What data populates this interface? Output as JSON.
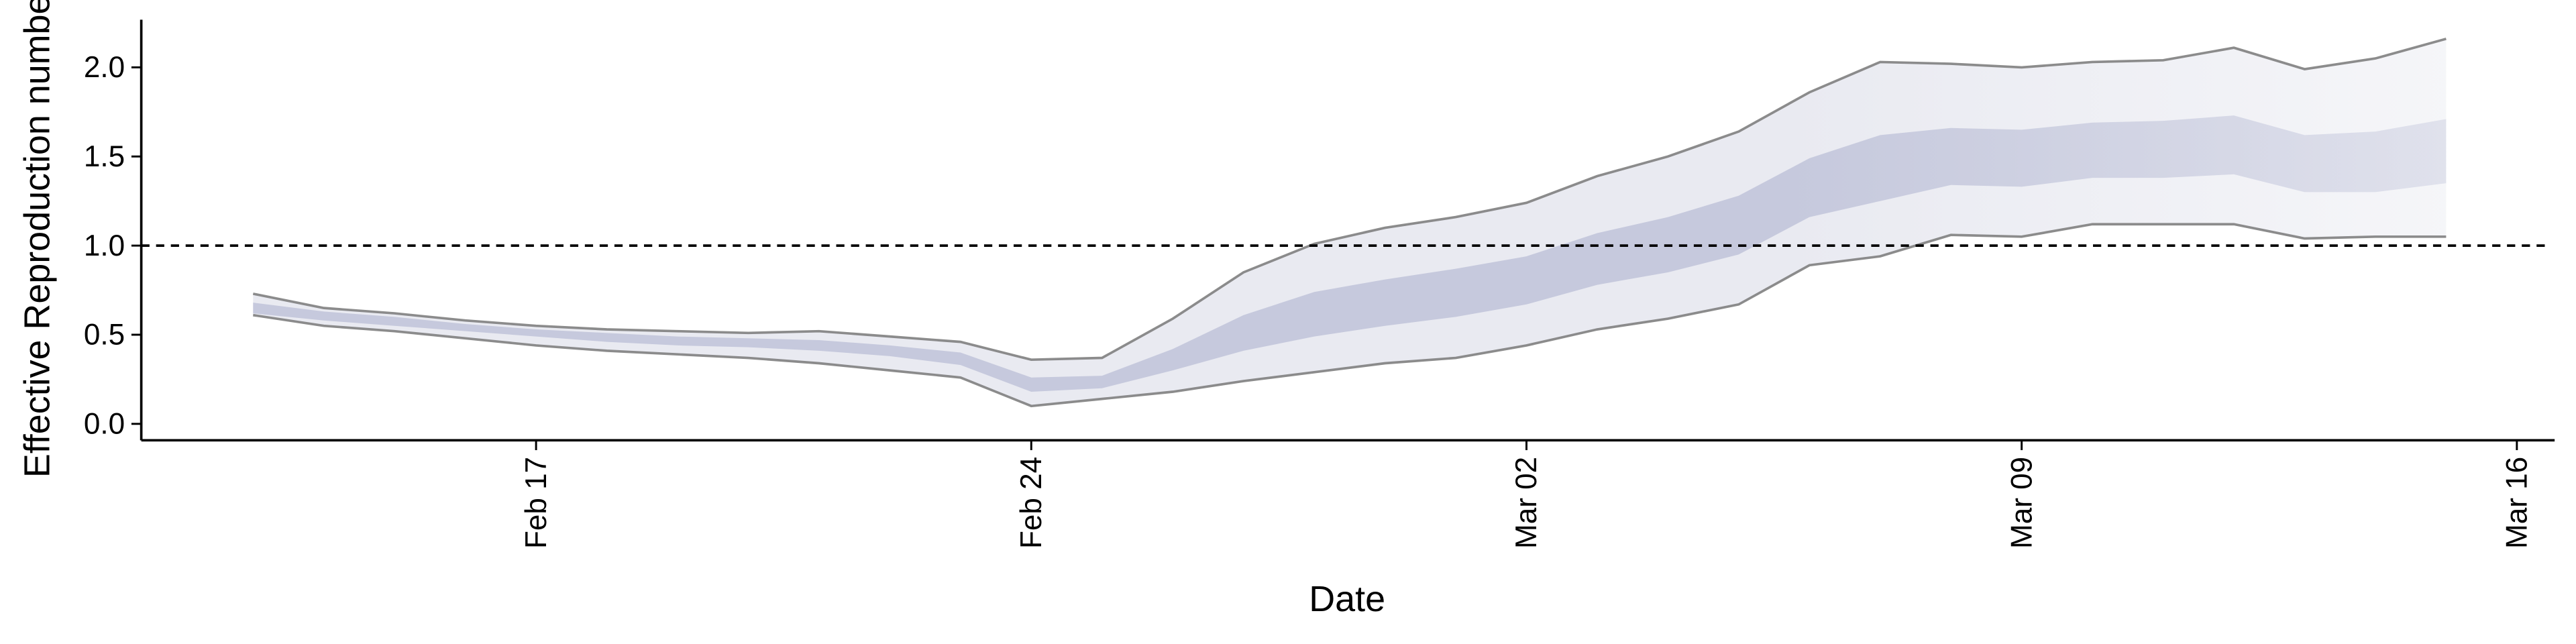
{
  "chart_data": {
    "type": "band",
    "x_label": "Date",
    "y_label": "Effective Reproduction number",
    "x": [
      "Feb 13",
      "Feb 14",
      "Feb 15",
      "Feb 16",
      "Feb 17",
      "Feb 18",
      "Feb 19",
      "Feb 20",
      "Feb 21",
      "Feb 22",
      "Feb 23",
      "Feb 24",
      "Feb 25",
      "Feb 26",
      "Feb 27",
      "Feb 28",
      "Feb 29",
      "Mar 01",
      "Mar 02",
      "Mar 03",
      "Mar 04",
      "Mar 05",
      "Mar 06",
      "Mar 07",
      "Mar 08",
      "Mar 09",
      "Mar 10",
      "Mar 11",
      "Mar 12",
      "Mar 13",
      "Mar 14",
      "Mar 15"
    ],
    "bands": [
      {
        "color": "#e9eaf1",
        "edge_color": "#808080",
        "upper": [
          0.73,
          0.65,
          0.62,
          0.58,
          0.55,
          0.53,
          0.52,
          0.51,
          0.52,
          0.49,
          0.46,
          0.36,
          0.37,
          0.59,
          0.85,
          1.01,
          1.1,
          1.16,
          1.24,
          1.39,
          1.5,
          1.64,
          1.86,
          2.03,
          2.02,
          2.0,
          2.03,
          2.04,
          2.11,
          1.99,
          2.05,
          2.16
        ],
        "lower": [
          0.61,
          0.55,
          0.52,
          0.48,
          0.44,
          0.41,
          0.39,
          0.37,
          0.34,
          0.3,
          0.26,
          0.1,
          0.14,
          0.18,
          0.24,
          0.29,
          0.34,
          0.37,
          0.44,
          0.53,
          0.59,
          0.67,
          0.89,
          0.94,
          1.06,
          1.05,
          1.12,
          1.12,
          1.12,
          1.04,
          1.05,
          1.05
        ]
      },
      {
        "color": "#c6c9dd",
        "upper": [
          0.68,
          0.63,
          0.6,
          0.56,
          0.53,
          0.51,
          0.49,
          0.48,
          0.47,
          0.44,
          0.4,
          0.26,
          0.27,
          0.42,
          0.61,
          0.74,
          0.81,
          0.87,
          0.94,
          1.07,
          1.16,
          1.28,
          1.49,
          1.62,
          1.66,
          1.65,
          1.69,
          1.7,
          1.73,
          1.62,
          1.64,
          1.71
        ],
        "lower": [
          0.62,
          0.58,
          0.55,
          0.52,
          0.49,
          0.46,
          0.44,
          0.43,
          0.41,
          0.38,
          0.33,
          0.18,
          0.2,
          0.3,
          0.41,
          0.49,
          0.55,
          0.6,
          0.67,
          0.78,
          0.85,
          0.95,
          1.16,
          1.25,
          1.34,
          1.33,
          1.38,
          1.38,
          1.4,
          1.3,
          1.3,
          1.35
        ]
      }
    ],
    "hline": 1,
    "xlim": [
      "Feb 12",
      "Mar 16"
    ],
    "xticks": [
      "Feb 17",
      "Feb 24",
      "Mar 02",
      "Mar 09",
      "Mar 16"
    ],
    "ylim": [
      -0.1,
      2.2
    ],
    "yticks": [
      {
        "value": 0,
        "label": "0.0"
      },
      {
        "value": 0.5,
        "label": "0.5"
      },
      {
        "value": 1,
        "label": "1.0"
      },
      {
        "value": 1.5,
        "label": "1.5"
      },
      {
        "value": 2,
        "label": "2.0"
      }
    ]
  }
}
